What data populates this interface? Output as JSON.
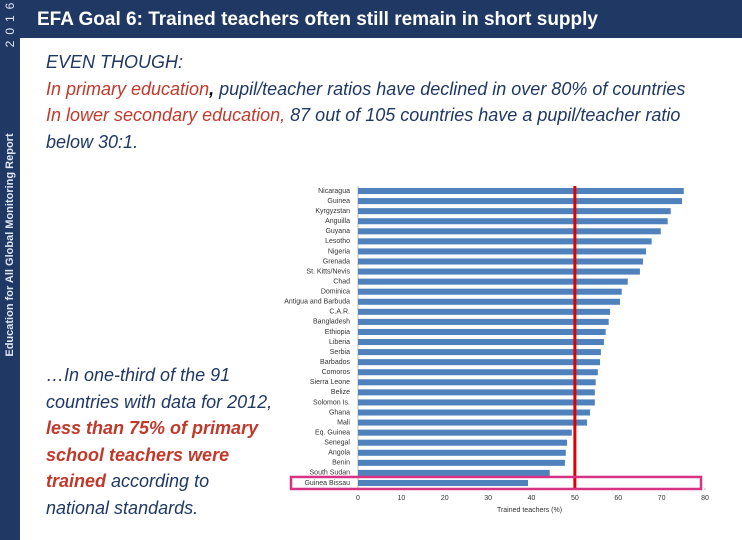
{
  "header": {
    "title": "EFA Goal 6: Trained teachers often still remain in short supply"
  },
  "sidebar": {
    "report_name": "Education for All Global Monitoring Report",
    "year": "2016"
  },
  "body": {
    "lead": "EVEN THOUGH:",
    "point1": [
      "In primary education",
      ",",
      " pupil/teacher ratios have declined in over 80% of countries"
    ],
    "point2": [
      "In lower secondary education,",
      " 87 out of 105 countries have a pupil/teacher ratio below 30:1."
    ],
    "note": [
      "…In one-third of the 91 countries with data for 2012, ",
      "less than 75% of primary school teachers were trained",
      " according to national standards."
    ]
  },
  "chart_data": {
    "type": "hbar",
    "x_label": "Trained teachers (%)",
    "categories": [
      "Nicaragua",
      "Guinea",
      "Kyrgyzstan",
      "Anguilla",
      "Guyana",
      "Lesotho",
      "Nigeria",
      "Grenada",
      "St. Kitts/Nevis",
      "Chad",
      "Dominica",
      "Antigua and Barbuda",
      "C.A.R.",
      "Bangladesh",
      "Ethiopia",
      "Liberia",
      "Serbia",
      "Barbados",
      "Comoros",
      "Sierra Leone",
      "Belize",
      "Solomon Is.",
      "Ghana",
      "Mali",
      "Eq. Guinea",
      "Senegal",
      "Angola",
      "Benin",
      "South Sudan",
      "Guinea Bissau"
    ],
    "values": [
      75.1,
      74.7,
      72.1,
      71.4,
      69.8,
      67.7,
      66.4,
      65.7,
      65.0,
      62.2,
      60.8,
      60.4,
      58.1,
      57.8,
      57.1,
      56.7,
      56.0,
      55.8,
      55.3,
      54.8,
      54.6,
      54.6,
      53.5,
      52.8,
      49.3,
      48.2,
      47.9,
      47.7,
      44.2,
      39.2
    ],
    "color": "#4f81bd",
    "xlim": [
      0,
      80
    ],
    "xticks": [
      0,
      10,
      20,
      30,
      40,
      50,
      60,
      70,
      80
    ],
    "reference_line": {
      "value": 50,
      "color": "#e00000"
    }
  }
}
